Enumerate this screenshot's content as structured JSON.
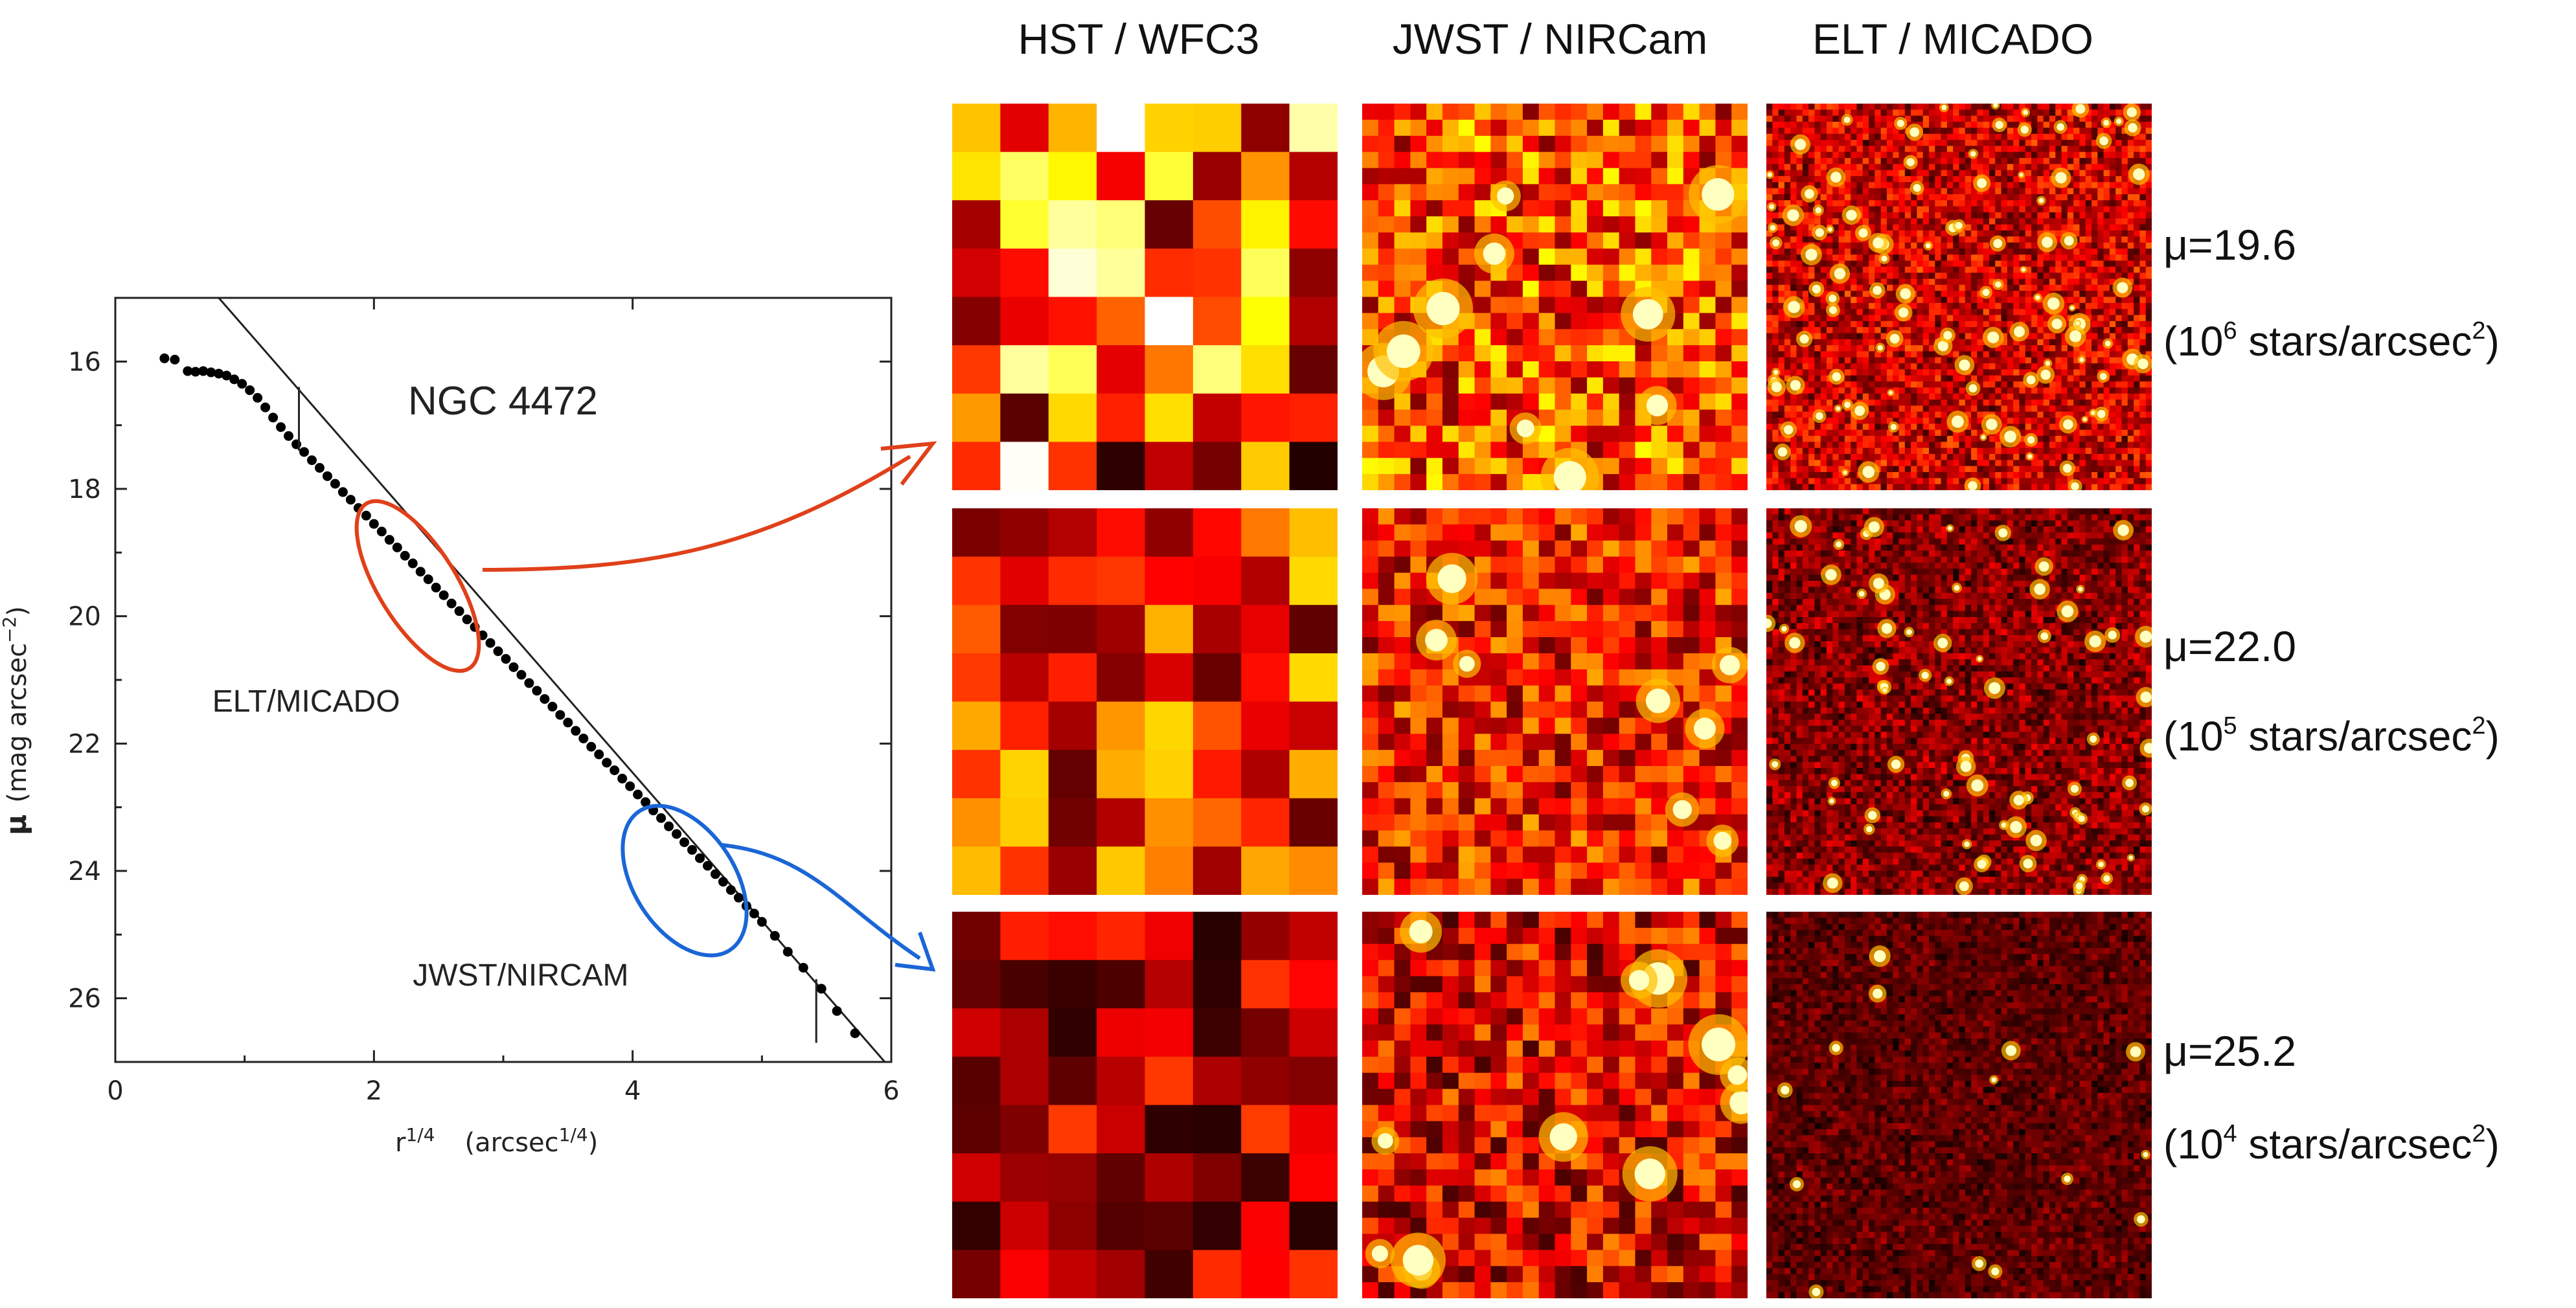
{
  "colors": {
    "elt_highlight": "#e0401a",
    "jwst_highlight": "#1a66d6",
    "points": "#000000",
    "axis": "#222222"
  },
  "chart_data": {
    "type": "scatter",
    "title": "NGC 4472",
    "xlabel": "r^{1/4} (arcsec^{1/4})",
    "xlabel_parts": {
      "base": "r",
      "base_exp": "1/4",
      "unit_open": "(arcsec",
      "unit_exp": "1/4",
      "unit_close": ")"
    },
    "ylabel": "μ (mag arcsec^-2)",
    "ylabel_parts": {
      "symbol": "μ",
      "unit": "(mag arcsec",
      "unit_exp": "−2",
      "unit_close": ")"
    },
    "xlim": [
      0,
      6
    ],
    "ylim": [
      27,
      15
    ],
    "x_ticks": [
      "0",
      "2",
      "4",
      "6"
    ],
    "y_ticks": [
      "16",
      "18",
      "20",
      "22",
      "24",
      "26"
    ],
    "series": [
      {
        "name": "surface brightness profile",
        "x": [
          0.38,
          0.46,
          0.56,
          0.62,
          0.68,
          0.74,
          0.8,
          0.86,
          0.92,
          0.98,
          1.04,
          1.1,
          1.16,
          1.22,
          1.28,
          1.34,
          1.4,
          1.46,
          1.52,
          1.58,
          1.64,
          1.7,
          1.76,
          1.82,
          1.88,
          1.94,
          2.0,
          2.06,
          2.12,
          2.18,
          2.24,
          2.3,
          2.36,
          2.42,
          2.48,
          2.54,
          2.6,
          2.66,
          2.72,
          2.78,
          2.84,
          2.9,
          2.96,
          3.02,
          3.08,
          3.14,
          3.2,
          3.26,
          3.32,
          3.38,
          3.44,
          3.5,
          3.56,
          3.62,
          3.68,
          3.74,
          3.8,
          3.86,
          3.92,
          3.98,
          4.04,
          4.1,
          4.16,
          4.22,
          4.28,
          4.34,
          4.4,
          4.46,
          4.52,
          4.58,
          4.64,
          4.7,
          4.76,
          4.82,
          4.88,
          4.94,
          5.0,
          5.1,
          5.2,
          5.32,
          5.46,
          5.58,
          5.72
        ],
        "y": [
          15.95,
          15.97,
          16.15,
          16.16,
          16.15,
          16.17,
          16.19,
          16.22,
          16.28,
          16.35,
          16.45,
          16.57,
          16.72,
          16.88,
          17.03,
          17.17,
          17.3,
          17.42,
          17.55,
          17.67,
          17.8,
          17.92,
          18.05,
          18.17,
          18.3,
          18.42,
          18.55,
          18.67,
          18.8,
          18.92,
          19.05,
          19.17,
          19.3,
          19.42,
          19.55,
          19.67,
          19.8,
          19.92,
          20.05,
          20.17,
          20.3,
          20.42,
          20.55,
          20.67,
          20.8,
          20.92,
          21.05,
          21.17,
          21.3,
          21.42,
          21.55,
          21.67,
          21.8,
          21.92,
          22.05,
          22.17,
          22.3,
          22.42,
          22.55,
          22.67,
          22.8,
          22.92,
          23.05,
          23.17,
          23.3,
          23.42,
          23.55,
          23.67,
          23.8,
          23.92,
          24.05,
          24.17,
          24.3,
          24.42,
          24.55,
          24.67,
          24.8,
          25.02,
          25.27,
          25.52,
          25.85,
          26.2,
          26.55
        ]
      },
      {
        "name": "de Vaucouleurs fit line",
        "x": [
          0.8,
          5.95
        ],
        "y": [
          15.0,
          27.0
        ]
      }
    ],
    "error_bar_x": [
      1.42,
      5.42
    ],
    "error_bar_y_center": [
      16.9,
      26.2
    ],
    "error_bar_halfwidth": 0.5,
    "annotations": [
      {
        "label": "ELT/MICADO",
        "x": 0.75,
        "y": 21.5
      },
      {
        "label": "JWST/NIRCAM",
        "x": 2.3,
        "y": 25.8
      }
    ],
    "highlights": [
      {
        "name": "ELT/MICADO region",
        "x_center": 2.5,
        "y_center": 19.45,
        "color_key": "elt_highlight"
      },
      {
        "name": "JWST/NIRCAM region",
        "x_center": 4.45,
        "y_center": 24.0,
        "color_key": "jwst_highlight"
      }
    ]
  },
  "panels": {
    "columns": [
      "HST / WFC3",
      "JWST / NIRCam",
      "ELT / MICADO"
    ],
    "rows": [
      {
        "mu_label": "μ=19.6",
        "density_prefix": "(10",
        "density_exp": "6",
        "density_mid": " stars/arcsec",
        "density_unit_exp": "2",
        "density_suffix": ")"
      },
      {
        "mu_label": "μ=22.0",
        "density_prefix": "(10",
        "density_exp": "5",
        "density_mid": " stars/arcsec",
        "density_unit_exp": "2",
        "density_suffix": ")"
      },
      {
        "mu_label": "μ=25.2",
        "density_prefix": "(10",
        "density_exp": "4",
        "density_mid": " stars/arcsec",
        "density_unit_exp": "2",
        "density_suffix": ")"
      }
    ]
  }
}
